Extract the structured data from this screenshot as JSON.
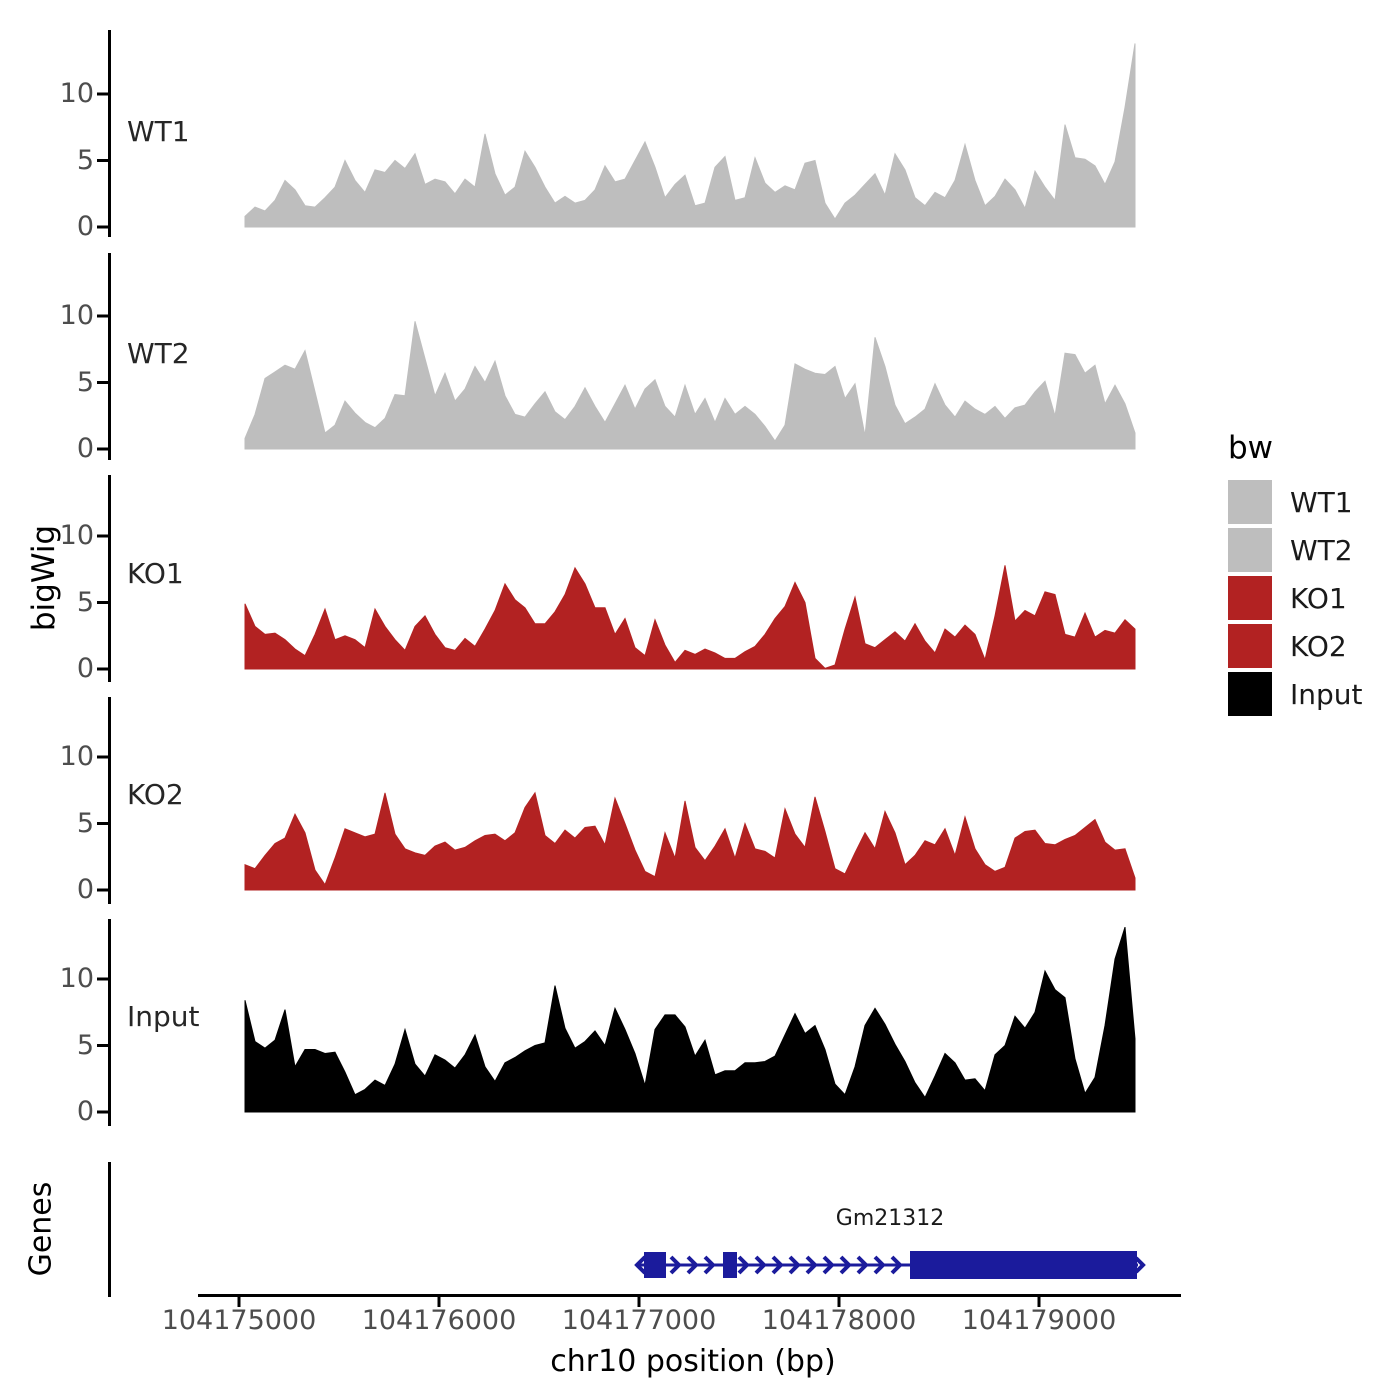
{
  "y_axis": {
    "title": "bigWig",
    "tick_labels": [
      "10",
      "5",
      "0"
    ]
  },
  "x_axis": {
    "title": "chr10 position (bp)",
    "tick_labels": [
      "104175000",
      "104176000",
      "104177000",
      "104178000",
      "104179000"
    ]
  },
  "legend": {
    "title": "bw",
    "entries": [
      {
        "label": "WT1",
        "color": "#bebebe"
      },
      {
        "label": "WT2",
        "color": "#bebebe"
      },
      {
        "label": "KO1",
        "color": "#b22222"
      },
      {
        "label": "KO2",
        "color": "#b22222"
      },
      {
        "label": "Input",
        "color": "#000000"
      }
    ]
  },
  "gene_track": {
    "axis_label": "Genes",
    "gene": {
      "name": "Gm21312",
      "color": "#1b1b9c",
      "strand": "+",
      "start_bp": 104176985,
      "end_bp": 104179495,
      "small_exons_bp": [
        [
          104177025,
          104177135
        ],
        [
          104177420,
          104177490
        ]
      ],
      "thick_exon_bp": [
        104178355,
        104179490
      ]
    }
  },
  "chart_data": {
    "type": "area",
    "facet_title": "bw",
    "xlabel": "chr10 position (bp)",
    "ylabel": "bigWig",
    "x_start_bp": 104175050,
    "x_step_bp": 50,
    "x_ticks_bp": [
      104175000,
      104176000,
      104177000,
      104178000,
      104179000
    ],
    "x_range_bp": [
      104174800,
      104179700
    ],
    "y_ticks": [
      0,
      5,
      10
    ],
    "ylim": [
      0,
      14.8
    ],
    "grid": false,
    "legend_position": "right",
    "series": [
      {
        "name": "WT1",
        "color": "#bebebe",
        "values": [
          0.8,
          1.5,
          1.2,
          2.0,
          3.5,
          2.8,
          1.6,
          1.5,
          2.2,
          3.0,
          5.0,
          3.5,
          2.6,
          4.3,
          4.1,
          5.0,
          4.4,
          5.5,
          3.2,
          3.6,
          3.4,
          2.5,
          3.6,
          3.0,
          7.0,
          4.0,
          2.4,
          3.0,
          5.7,
          4.5,
          3.0,
          1.8,
          2.3,
          1.8,
          2.0,
          2.8,
          4.6,
          3.4,
          3.6,
          5.0,
          6.4,
          4.5,
          2.2,
          3.2,
          3.9,
          1.6,
          1.8,
          4.5,
          5.3,
          2.0,
          2.2,
          5.2,
          3.3,
          2.6,
          3.1,
          2.8,
          4.8,
          5.0,
          1.8,
          0.6,
          1.8,
          2.4,
          3.2,
          4.0,
          2.4,
          5.5,
          4.3,
          2.2,
          1.6,
          2.6,
          2.2,
          3.5,
          6.2,
          3.5,
          1.6,
          2.3,
          3.6,
          2.8,
          1.4,
          4.2,
          3.0,
          2.0,
          7.7,
          5.2,
          5.1,
          4.6,
          3.2,
          4.9,
          9.0,
          13.8
        ]
      },
      {
        "name": "WT2",
        "color": "#bebebe",
        "values": [
          0.8,
          2.6,
          5.3,
          5.8,
          6.3,
          6.0,
          7.4,
          4.3,
          1.2,
          1.8,
          3.6,
          2.7,
          2.0,
          1.6,
          2.3,
          4.1,
          4.0,
          9.6,
          6.8,
          4.0,
          5.7,
          3.6,
          4.5,
          6.2,
          5.0,
          6.6,
          4.0,
          2.6,
          2.4,
          3.4,
          4.3,
          2.8,
          2.2,
          3.2,
          4.6,
          3.2,
          2.0,
          3.4,
          4.8,
          3.0,
          4.5,
          5.2,
          3.2,
          2.4,
          4.8,
          2.6,
          3.8,
          2.0,
          3.8,
          2.6,
          3.2,
          2.6,
          1.7,
          0.6,
          1.8,
          6.4,
          6.0,
          5.7,
          5.6,
          6.2,
          3.8,
          4.9,
          1.0,
          8.4,
          6.2,
          3.3,
          1.9,
          2.4,
          3.0,
          4.9,
          3.3,
          2.4,
          3.6,
          3.0,
          2.6,
          3.2,
          2.3,
          3.1,
          3.3,
          4.3,
          5.1,
          2.5,
          7.2,
          7.1,
          5.7,
          6.3,
          3.4,
          4.8,
          3.4,
          1.2
        ]
      },
      {
        "name": "KO1",
        "color": "#b22222",
        "values": [
          4.9,
          3.2,
          2.6,
          2.7,
          2.2,
          1.5,
          1.0,
          2.6,
          4.5,
          2.2,
          2.5,
          2.2,
          1.6,
          4.5,
          3.2,
          2.2,
          1.4,
          3.2,
          4.0,
          2.6,
          1.6,
          1.4,
          2.3,
          1.7,
          3.0,
          4.4,
          6.4,
          5.2,
          4.6,
          3.4,
          3.4,
          4.3,
          5.6,
          7.6,
          6.4,
          4.6,
          4.6,
          2.6,
          3.8,
          1.6,
          1.0,
          3.7,
          1.8,
          0.5,
          1.4,
          1.1,
          1.5,
          1.2,
          0.8,
          0.8,
          1.3,
          1.7,
          2.6,
          3.8,
          4.7,
          6.5,
          5.0,
          0.8,
          0.05,
          0.3,
          3.0,
          5.4,
          1.9,
          1.6,
          2.2,
          2.8,
          2.1,
          3.4,
          2.1,
          1.2,
          3.0,
          2.4,
          3.3,
          2.6,
          0.7,
          4.0,
          7.8,
          3.6,
          4.4,
          4.0,
          5.8,
          5.6,
          2.6,
          2.4,
          4.2,
          2.4,
          2.9,
          2.7,
          3.7,
          3.0
        ]
      },
      {
        "name": "KO2",
        "color": "#b22222",
        "values": [
          1.9,
          1.6,
          2.6,
          3.5,
          3.9,
          5.7,
          4.3,
          1.5,
          0.4,
          2.4,
          4.6,
          4.3,
          4.0,
          4.2,
          7.3,
          4.2,
          3.1,
          2.8,
          2.6,
          3.3,
          3.6,
          3.0,
          3.2,
          3.7,
          4.1,
          4.2,
          3.7,
          4.3,
          6.2,
          7.3,
          4.1,
          3.5,
          4.5,
          3.9,
          4.7,
          4.8,
          3.4,
          6.9,
          5.0,
          3.0,
          1.4,
          1.0,
          4.3,
          2.4,
          6.7,
          3.2,
          2.2,
          3.3,
          4.6,
          2.4,
          5.0,
          3.1,
          2.9,
          2.4,
          6.1,
          4.2,
          3.2,
          7.0,
          4.4,
          1.6,
          1.2,
          2.8,
          4.3,
          3.1,
          5.9,
          4.3,
          1.9,
          2.6,
          3.7,
          3.4,
          4.6,
          2.6,
          5.5,
          3.1,
          1.9,
          1.4,
          1.7,
          3.9,
          4.4,
          4.5,
          3.5,
          3.4,
          3.8,
          4.1,
          4.7,
          5.3,
          3.6,
          3.0,
          3.1,
          0.9
        ]
      },
      {
        "name": "Input",
        "color": "#000000",
        "values": [
          8.4,
          5.3,
          4.8,
          5.4,
          7.7,
          3.4,
          4.7,
          4.7,
          4.4,
          4.5,
          3.0,
          1.3,
          1.7,
          2.4,
          2.0,
          3.6,
          6.2,
          3.6,
          2.7,
          4.3,
          3.9,
          3.3,
          4.3,
          5.8,
          3.4,
          2.3,
          3.7,
          4.1,
          4.6,
          5.0,
          5.2,
          9.5,
          6.3,
          4.8,
          5.3,
          6.1,
          5.0,
          7.8,
          6.2,
          4.4,
          2.0,
          6.2,
          7.3,
          7.3,
          6.4,
          4.2,
          5.4,
          2.8,
          3.1,
          3.1,
          3.7,
          3.7,
          3.8,
          4.2,
          5.8,
          7.4,
          5.9,
          6.5,
          4.7,
          2.1,
          1.3,
          3.4,
          6.5,
          7.8,
          6.6,
          5.1,
          3.8,
          2.2,
          1.1,
          2.7,
          4.4,
          3.7,
          2.4,
          2.5,
          1.6,
          4.3,
          5.0,
          7.2,
          6.3,
          7.5,
          10.6,
          9.2,
          8.6,
          4.0,
          1.4,
          2.6,
          6.5,
          11.5,
          13.9,
          5.5
        ]
      }
    ],
    "gene_annotation": {
      "name": "Gm21312",
      "chrom": "chr10",
      "strand": "+"
    }
  }
}
